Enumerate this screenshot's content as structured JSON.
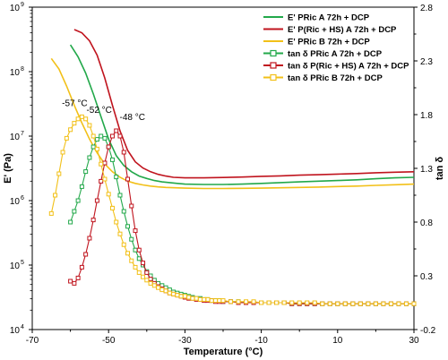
{
  "chart_data": {
    "type": "line",
    "xlabel": "Temperature (°C)",
    "ylabel_left": "E' (Pa)",
    "ylabel_right": "tan δ",
    "xlim": [
      -70,
      30
    ],
    "x_ticks": [
      "-70",
      "-50",
      "-30",
      "-10",
      "10",
      "30"
    ],
    "ylim_left": [
      10000,
      1000000000
    ],
    "yscale_left": "log",
    "y_left_ticks": [
      {
        "value": 10000,
        "base": "10",
        "exp": "4"
      },
      {
        "value": 100000,
        "base": "10",
        "exp": "5"
      },
      {
        "value": 1000000,
        "base": "10",
        "exp": "6"
      },
      {
        "value": 10000000,
        "base": "10",
        "exp": "7"
      },
      {
        "value": 100000000,
        "base": "10",
        "exp": "8"
      },
      {
        "value": 1000000000,
        "base": "10",
        "exp": "9"
      }
    ],
    "ylim_right": [
      -0.2,
      2.8
    ],
    "y_right_ticks": [
      "-0.2",
      "0.3",
      "0.8",
      "1.3",
      "1.8",
      "2.3",
      "2.8"
    ],
    "legend_position": "top-right",
    "series": [
      {
        "name": "E' PRic A 72h + DCP",
        "axis": "left",
        "color": "#22a84a",
        "marker": "none",
        "x": [
          -60,
          -58,
          -56,
          -54,
          -52,
          -50,
          -48,
          -46,
          -44,
          -42,
          -40,
          -38,
          -36,
          -34,
          -32,
          -30,
          -25,
          -20,
          -15,
          -10,
          -5,
          0,
          5,
          10,
          15,
          20,
          25,
          30
        ],
        "y": [
          260000000,
          170000000,
          95000000,
          45000000,
          20000000,
          9000000,
          5000000,
          3500000,
          2800000,
          2400000,
          2200000,
          2050000,
          1950000,
          1900000,
          1850000,
          1800000,
          1780000,
          1780000,
          1800000,
          1850000,
          1900000,
          1950000,
          2000000,
          2050000,
          2100000,
          2180000,
          2250000,
          2300000
        ]
      },
      {
        "name": "E' P(Ric + HS) A 72h + DCP",
        "axis": "left",
        "color": "#c0141e",
        "marker": "none",
        "x": [
          -59,
          -57,
          -55,
          -53,
          -51,
          -49,
          -47,
          -45,
          -43,
          -41,
          -39,
          -37,
          -35,
          -33,
          -30,
          -25,
          -20,
          -15,
          -10,
          -5,
          0,
          5,
          10,
          15,
          20,
          25,
          30
        ],
        "y": [
          450000000,
          400000000,
          300000000,
          180000000,
          80000000,
          30000000,
          12000000,
          6000000,
          4000000,
          3200000,
          2800000,
          2550000,
          2400000,
          2300000,
          2250000,
          2250000,
          2280000,
          2320000,
          2380000,
          2420000,
          2480000,
          2520000,
          2580000,
          2630000,
          2700000,
          2760000,
          2800000
        ]
      },
      {
        "name": "E' PRic B 72h + DCP",
        "axis": "left",
        "color": "#f2c018",
        "marker": "none",
        "x": [
          -65,
          -63,
          -61,
          -59,
          -57,
          -55,
          -53,
          -51,
          -49,
          -47,
          -45,
          -43,
          -41,
          -39,
          -37,
          -35,
          -30,
          -25,
          -20,
          -15,
          -10,
          -5,
          0,
          5,
          10,
          15,
          20,
          25,
          30
        ],
        "y": [
          160000000,
          110000000,
          60000000,
          30000000,
          16000000,
          9000000,
          5500000,
          3700000,
          2800000,
          2300000,
          2000000,
          1850000,
          1750000,
          1680000,
          1630000,
          1600000,
          1560000,
          1540000,
          1540000,
          1550000,
          1560000,
          1580000,
          1600000,
          1620000,
          1650000,
          1680000,
          1720000,
          1760000,
          1800000
        ]
      },
      {
        "name": "tan δ PRic A 72h + DCP",
        "axis": "right",
        "color": "#22a84a",
        "marker": "square",
        "x": [
          -60,
          -59,
          -58,
          -57,
          -56,
          -55,
          -54,
          -53,
          -52,
          -51,
          -50,
          -49,
          -48,
          -47,
          -46,
          -45,
          -44,
          -43,
          -42,
          -41,
          -40,
          -39,
          -38,
          -37,
          -36,
          -35,
          -34,
          -33,
          -32,
          -31,
          -30,
          -29,
          -28,
          -27,
          -26,
          -25,
          -24,
          -23,
          -22,
          -21,
          -20,
          -18,
          -16,
          -14,
          -12,
          -10,
          -8,
          -6,
          -4,
          -2,
          0,
          2,
          4,
          6,
          8,
          10,
          12,
          14,
          16,
          18,
          20,
          22,
          24,
          26,
          28,
          30
        ],
        "y": [
          0.8,
          0.9,
          1.0,
          1.13,
          1.27,
          1.4,
          1.5,
          1.57,
          1.6,
          1.58,
          1.5,
          1.38,
          1.22,
          1.05,
          0.9,
          0.76,
          0.64,
          0.54,
          0.46,
          0.4,
          0.34,
          0.3,
          0.26,
          0.23,
          0.21,
          0.19,
          0.17,
          0.15,
          0.14,
          0.13,
          0.12,
          0.11,
          0.1,
          0.09,
          0.09,
          0.08,
          0.08,
          0.07,
          0.07,
          0.07,
          0.06,
          0.06,
          0.06,
          0.05,
          0.05,
          0.05,
          0.05,
          0.05,
          0.05,
          0.04,
          0.04,
          0.04,
          0.04,
          0.04,
          0.04,
          0.04,
          0.04,
          0.04,
          0.04,
          0.04,
          0.04,
          0.04,
          0.04,
          0.04,
          0.04,
          0.04
        ]
      },
      {
        "name": "tan δ P(Ric + HS) A 72h + DCP",
        "axis": "right",
        "color": "#c0141e",
        "marker": "square",
        "x": [
          -60,
          -59,
          -58,
          -57,
          -56,
          -55,
          -54,
          -53,
          -52,
          -51,
          -50,
          -49,
          -48,
          -47,
          -46,
          -45,
          -44,
          -43,
          -42,
          -41,
          -40,
          -39,
          -38,
          -37,
          -36,
          -35,
          -34,
          -33,
          -32,
          -31,
          -30,
          -29,
          -28,
          -27,
          -26,
          -25,
          -24,
          -23,
          -22,
          -21,
          -20,
          -18,
          -16,
          -14,
          -12,
          -10,
          -8,
          -6,
          -4,
          -2,
          0,
          2,
          4,
          6,
          8,
          10,
          12,
          14,
          16,
          18,
          20,
          22,
          24,
          26,
          28,
          30
        ],
        "y": [
          0.25,
          0.23,
          0.28,
          0.38,
          0.5,
          0.65,
          0.82,
          1.0,
          1.18,
          1.35,
          1.5,
          1.6,
          1.65,
          1.6,
          1.45,
          1.2,
          0.95,
          0.72,
          0.54,
          0.42,
          0.33,
          0.27,
          0.23,
          0.2,
          0.18,
          0.16,
          0.14,
          0.13,
          0.12,
          0.11,
          0.1,
          0.09,
          0.09,
          0.08,
          0.08,
          0.07,
          0.07,
          0.07,
          0.06,
          0.06,
          0.06,
          0.06,
          0.05,
          0.05,
          0.05,
          0.05,
          0.05,
          0.05,
          0.05,
          0.04,
          0.04,
          0.04,
          0.04,
          0.04,
          0.04,
          0.04,
          0.04,
          0.04,
          0.04,
          0.04,
          0.04,
          0.04,
          0.04,
          0.04,
          0.04,
          0.04
        ]
      },
      {
        "name": "tan δ PRic B 72h + DCP",
        "axis": "right",
        "color": "#f2c018",
        "marker": "square",
        "x": [
          -65,
          -64,
          -63,
          -62,
          -61,
          -60,
          -59,
          -58,
          -57,
          -56,
          -55,
          -54,
          -53,
          -52,
          -51,
          -50,
          -49,
          -48,
          -47,
          -46,
          -45,
          -44,
          -43,
          -42,
          -41,
          -40,
          -39,
          -38,
          -37,
          -36,
          -35,
          -34,
          -33,
          -32,
          -31,
          -30,
          -29,
          -28,
          -27,
          -26,
          -25,
          -24,
          -23,
          -22,
          -21,
          -20,
          -18,
          -16,
          -14,
          -12,
          -10,
          -8,
          -6,
          -4,
          -2,
          0,
          2,
          4,
          6,
          8,
          10,
          12,
          14,
          16,
          18,
          20,
          22,
          24,
          26,
          28,
          30
        ],
        "y": [
          0.88,
          1.05,
          1.25,
          1.45,
          1.58,
          1.66,
          1.72,
          1.76,
          1.78,
          1.76,
          1.7,
          1.6,
          1.48,
          1.34,
          1.2,
          1.06,
          0.93,
          0.8,
          0.69,
          0.59,
          0.51,
          0.44,
          0.38,
          0.33,
          0.29,
          0.26,
          0.23,
          0.21,
          0.19,
          0.17,
          0.16,
          0.14,
          0.13,
          0.12,
          0.11,
          0.11,
          0.1,
          0.09,
          0.09,
          0.08,
          0.08,
          0.08,
          0.07,
          0.07,
          0.07,
          0.07,
          0.06,
          0.06,
          0.06,
          0.06,
          0.05,
          0.05,
          0.05,
          0.05,
          0.05,
          0.05,
          0.05,
          0.05,
          0.04,
          0.04,
          0.04,
          0.04,
          0.04,
          0.04,
          0.04,
          0.04,
          0.04,
          0.04,
          0.04,
          0.04,
          0.04
        ]
      }
    ],
    "annotations": [
      {
        "text": "-57 °C",
        "x": -57,
        "y": 1.78,
        "axis": "right",
        "color": "#000000"
      },
      {
        "text": "-52 °C",
        "x": -52,
        "y": 1.6,
        "axis": "right",
        "color": "#000000"
      },
      {
        "text": "-48 °C",
        "x": -48,
        "y": 1.65,
        "axis": "right",
        "color": "#000000"
      }
    ]
  }
}
